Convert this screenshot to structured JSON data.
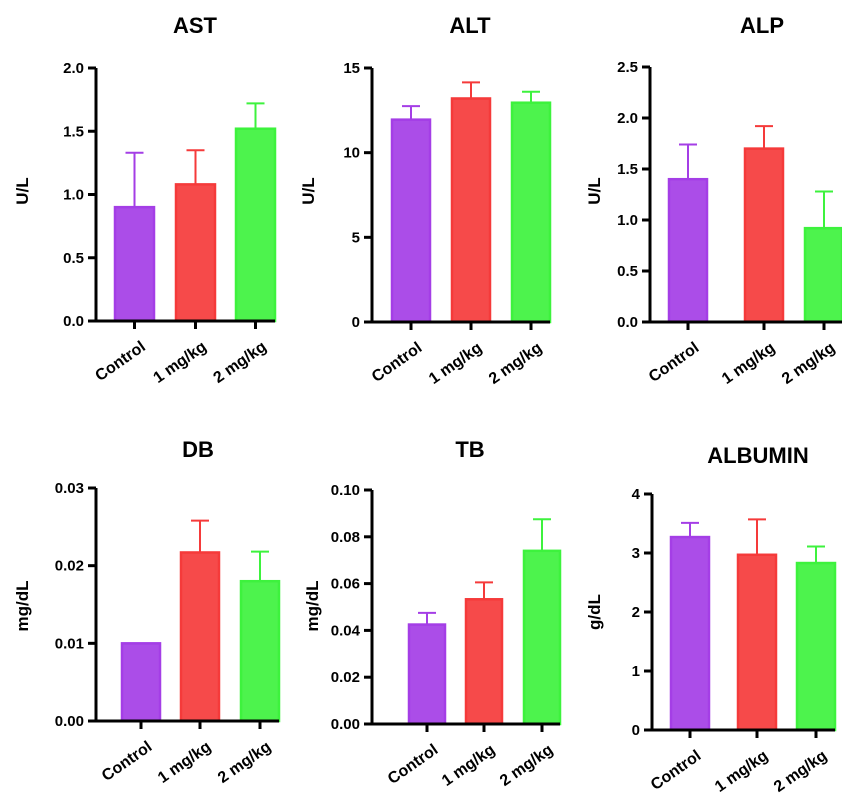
{
  "chart_data": [
    {
      "type": "bar",
      "title": "AST",
      "ylabel": "U/L",
      "categories": [
        "Control",
        "1 mg/kg",
        "2 mg/kg"
      ],
      "values": [
        0.9,
        1.08,
        1.52
      ],
      "errors": [
        0.43,
        0.27,
        0.2
      ],
      "ylim": [
        0,
        2.0
      ],
      "yticks": [
        "0.0",
        "0.5",
        "1.0",
        "1.5",
        "2.0"
      ],
      "colors": [
        "#a43ee6",
        "#f53a3a",
        "#3df23d"
      ],
      "grid": false,
      "legend": "none"
    },
    {
      "type": "bar",
      "title": "ALT",
      "ylabel": "U/L",
      "categories": [
        "Control",
        "1 mg/kg",
        "2 mg/kg"
      ],
      "values": [
        11.95,
        13.2,
        12.95
      ],
      "errors": [
        0.8,
        0.95,
        0.65
      ],
      "ylim": [
        0,
        15
      ],
      "yticks": [
        "0",
        "5",
        "10",
        "15"
      ],
      "colors": [
        "#a43ee6",
        "#f53a3a",
        "#3df23d"
      ],
      "grid": false,
      "legend": "none"
    },
    {
      "type": "bar",
      "title": "ALP",
      "ylabel": "U/L",
      "categories": [
        "Control",
        "1 mg/kg",
        "2 mg/kg"
      ],
      "values": [
        1.4,
        1.7,
        0.92
      ],
      "errors": [
        0.34,
        0.22,
        0.36
      ],
      "ylim": [
        0,
        2.5
      ],
      "yticks": [
        "0.0",
        "0.5",
        "1.0",
        "1.5",
        "2.0",
        "2.5"
      ],
      "colors": [
        "#a43ee6",
        "#f53a3a",
        "#3df23d"
      ],
      "grid": false,
      "legend": "none"
    },
    {
      "type": "bar",
      "title": "DB",
      "ylabel": "mg/dL",
      "categories": [
        "Control",
        "1 mg/kg",
        "2 mg/kg"
      ],
      "values": [
        0.01,
        0.0217,
        0.018
      ],
      "errors": [
        0,
        0.0041,
        0.0038
      ],
      "ylim": [
        0,
        0.03
      ],
      "yticks": [
        "0.00",
        "0.01",
        "0.02",
        "0.03"
      ],
      "colors": [
        "#a43ee6",
        "#f53a3a",
        "#3df23d"
      ],
      "grid": false,
      "legend": "none"
    },
    {
      "type": "bar",
      "title": "TB",
      "ylabel": "mg/dL",
      "categories": [
        "Control",
        "1 mg/kg",
        "2 mg/kg"
      ],
      "values": [
        0.0425,
        0.0533,
        0.074
      ],
      "errors": [
        0.005,
        0.0072,
        0.0135
      ],
      "ylim": [
        0,
        0.1
      ],
      "yticks": [
        "0.00",
        "0.02",
        "0.04",
        "0.06",
        "0.08",
        "0.10"
      ],
      "colors": [
        "#a43ee6",
        "#f53a3a",
        "#3df23d"
      ],
      "grid": false,
      "legend": "none"
    },
    {
      "type": "bar",
      "title": "ALBUMIN",
      "ylabel": "g/dL",
      "categories": [
        "Control",
        "1 mg/kg",
        "2 mg/kg"
      ],
      "values": [
        3.27,
        2.97,
        2.83
      ],
      "errors": [
        0.24,
        0.6,
        0.28
      ],
      "ylim": [
        0,
        4
      ],
      "yticks": [
        "0",
        "1",
        "2",
        "3",
        "4"
      ],
      "colors": [
        "#a43ee6",
        "#f53a3a",
        "#3df23d"
      ],
      "grid": false,
      "legend": "none"
    }
  ]
}
